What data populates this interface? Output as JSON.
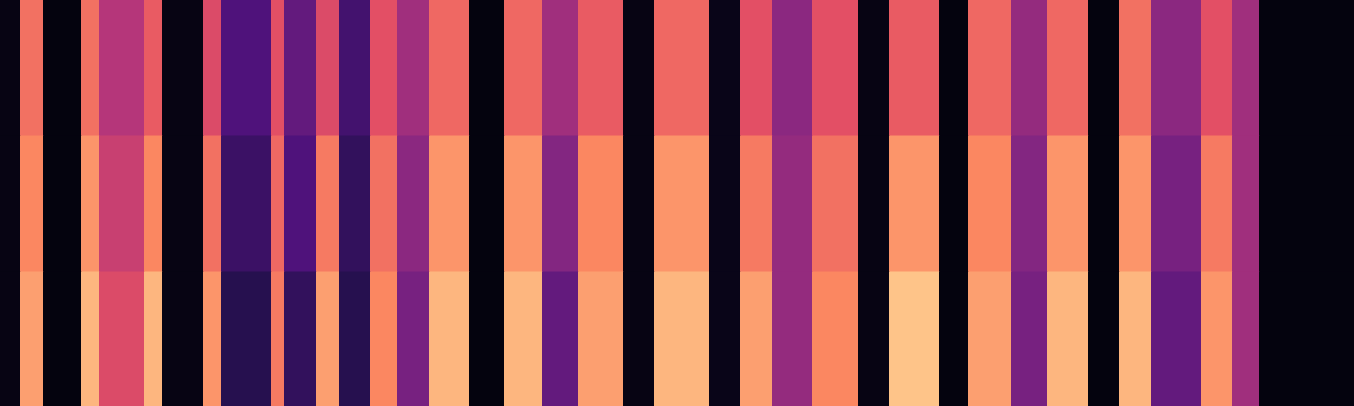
{
  "chart_data": {
    "type": "heatmap",
    "color": "magma",
    "tick_labels": false,
    "xlim": [
      0,
      15
    ],
    "ylim": [
      0,
      3
    ],
    "zlim": [
      0,
      100
    ],
    "bins": [
      0,
      0.22,
      0.48,
      0.9,
      1.1,
      1.6,
      1.8,
      2.25,
      2.45,
      3.0,
      3.15,
      3.5,
      3.75,
      4.1,
      4.4,
      4.75,
      5.2,
      5.58,
      6.0,
      6.4,
      6.9,
      7.25,
      7.85,
      8.2,
      8.55,
      9.0,
      9.5,
      9.85,
      10.4,
      10.72,
      11.2,
      11.6,
      12.05,
      12.4,
      12.75,
      13.3,
      13.65,
      13.95,
      15
    ],
    "cells": [
      [
        3,
        80,
        2,
        85,
        60,
        85,
        3,
        78,
        15,
        72,
        18,
        80,
        15,
        75,
        35,
        85,
        2,
        85,
        30,
        80,
        3,
        85,
        4,
        80,
        42,
        75,
        3,
        88,
        2,
        80,
        35,
        85,
        2,
        85,
        30,
        78,
        45,
        2
      ],
      [
        3,
        75,
        2,
        78,
        55,
        75,
        3,
        70,
        20,
        68,
        25,
        72,
        18,
        70,
        40,
        78,
        2,
        78,
        38,
        75,
        3,
        78,
        4,
        72,
        42,
        70,
        3,
        78,
        2,
        75,
        38,
        78,
        2,
        78,
        35,
        72,
        45,
        2
      ],
      [
        3,
        70,
        2,
        70,
        50,
        65,
        3,
        60,
        25,
        62,
        30,
        60,
        22,
        62,
        45,
        68,
        2,
        68,
        45,
        65,
        3,
        68,
        4,
        62,
        40,
        62,
        3,
        65,
        2,
        68,
        42,
        68,
        2,
        70,
        40,
        62,
        45,
        2
      ]
    ]
  }
}
